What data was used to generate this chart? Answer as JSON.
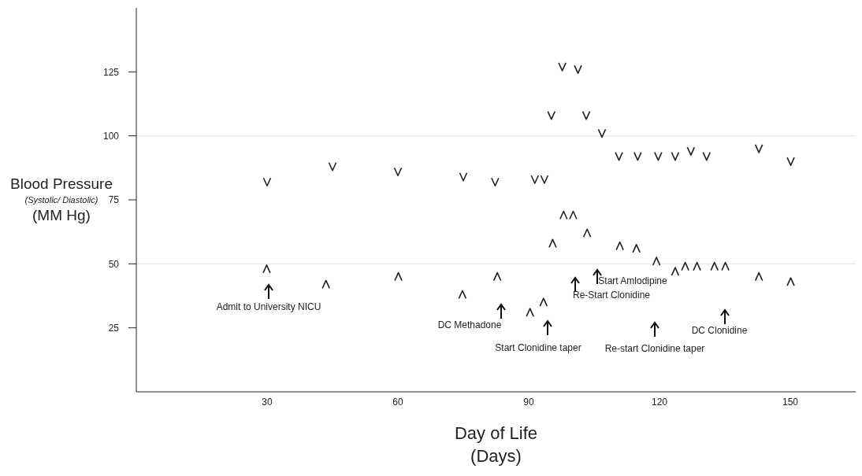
{
  "chart_data": {
    "type": "scatter",
    "xlabel": "Day of Life\n(Days)",
    "ylabel": "Blood Pressure\n(Systolic/ Diastolic)\n(MM Hg)",
    "xlim": [
      0,
      165
    ],
    "ylim": [
      0,
      150
    ],
    "xticks": [
      30,
      60,
      90,
      120,
      150
    ],
    "yticks": [
      25,
      50,
      75,
      100,
      125
    ],
    "ref_lines": [
      {
        "axis": "y",
        "value": 50,
        "color": "#e6e6e6"
      },
      {
        "axis": "y",
        "value": 100,
        "color": "#e6e6e6"
      }
    ],
    "series": [
      {
        "color": "#222222",
        "x": [
          30,
          45,
          60,
          75,
          82.3,
          91.4,
          93.6,
          95.2,
          97.7,
          101.3,
          103.2,
          106.8,
          110.7,
          115,
          119.7,
          123.6,
          127.2,
          130.8,
          142.8,
          150.1
        ],
        "values": [
          82,
          88,
          86,
          84,
          82,
          83,
          83,
          108,
          127,
          126,
          108,
          101,
          92,
          92,
          92,
          92,
          94,
          92,
          95,
          90
        ]
      },
      {
        "color": "#222222",
        "x": [
          29.9,
          43.5,
          60.1,
          74.8,
          82.8,
          90.3,
          93.4,
          95.5,
          98,
          100.2,
          103.4,
          110.9,
          114.7,
          119.3,
          123.6,
          125.9,
          128.6,
          132.6,
          135.1,
          142.8,
          150.1
        ],
        "values": [
          48,
          42,
          45,
          38,
          45,
          31,
          35,
          58,
          69,
          69,
          62,
          57,
          56,
          51,
          47,
          49,
          49,
          49,
          49,
          45,
          43
        ]
      }
    ],
    "annotations": [
      "Admit to University NICU",
      "DC Methadone",
      "Start Clonidine taper",
      "Re-Start Clonidine",
      "Start Amlodipine",
      "Re-start Clonidine taper",
      "DC Clonidine"
    ]
  }
}
